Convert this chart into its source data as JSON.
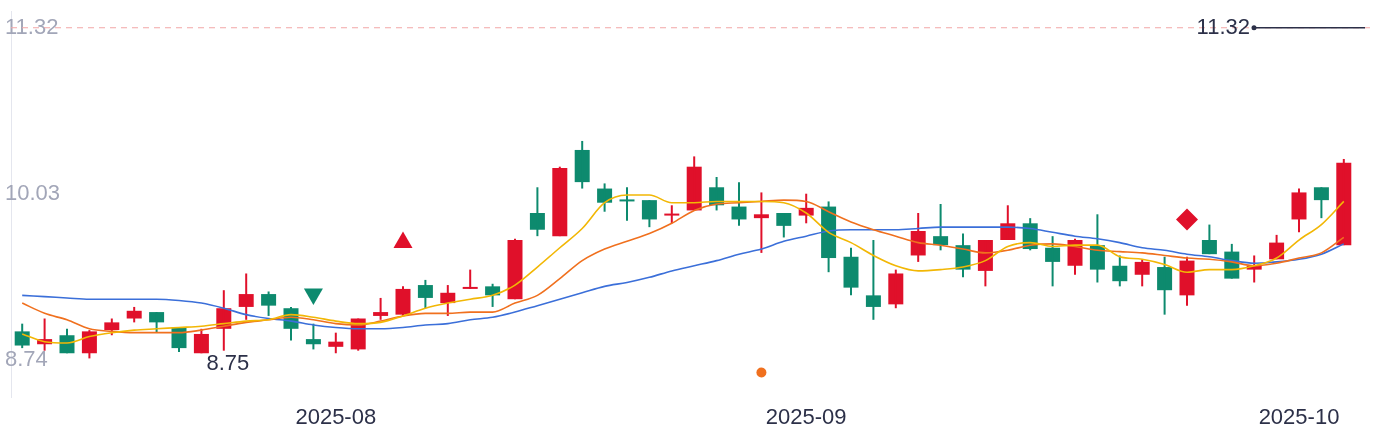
{
  "chart_data": {
    "type": "candlestick",
    "categories": [
      null,
      null,
      null,
      null,
      null,
      null,
      null,
      null,
      null,
      null,
      null,
      null,
      null,
      null,
      "2025-08",
      null,
      null,
      null,
      null,
      null,
      null,
      null,
      null,
      null,
      null,
      null,
      null,
      null,
      null,
      null,
      null,
      null,
      null,
      null,
      null,
      "2025-09",
      null,
      null,
      null,
      null,
      null,
      null,
      null,
      null,
      null,
      null,
      null,
      null,
      null,
      null,
      null,
      null,
      null,
      null,
      null,
      null,
      null,
      "2025-10",
      null,
      null
    ],
    "ohlc": [
      [
        8.96,
        9.02,
        8.83,
        8.85
      ],
      [
        8.86,
        9.06,
        8.81,
        8.9
      ],
      [
        8.93,
        8.98,
        8.79,
        8.79
      ],
      [
        8.79,
        8.97,
        8.75,
        8.96
      ],
      [
        8.97,
        9.06,
        8.93,
        9.03
      ],
      [
        9.06,
        9.15,
        9.03,
        9.12
      ],
      [
        9.11,
        9.11,
        8.95,
        9.03
      ],
      [
        8.99,
        8.99,
        8.8,
        8.83
      ],
      [
        8.79,
        8.98,
        8.79,
        8.94
      ],
      [
        8.98,
        9.28,
        8.81,
        9.14
      ],
      [
        9.15,
        9.41,
        9.05,
        9.25
      ],
      [
        9.25,
        9.27,
        9.08,
        9.16
      ],
      [
        9.14,
        9.15,
        8.89,
        8.98
      ],
      [
        8.9,
        9.02,
        8.82,
        8.86
      ],
      [
        8.84,
        8.95,
        8.79,
        8.88
      ],
      [
        8.82,
        9.06,
        8.81,
        9.06
      ],
      [
        9.08,
        9.22,
        9.05,
        9.11
      ],
      [
        9.09,
        9.31,
        9.08,
        9.29
      ],
      [
        9.32,
        9.36,
        9.14,
        9.22
      ],
      [
        9.18,
        9.32,
        9.08,
        9.26
      ],
      [
        9.29,
        9.44,
        9.29,
        9.3
      ],
      [
        9.31,
        9.33,
        9.15,
        9.24
      ],
      [
        9.21,
        9.68,
        9.21,
        9.67
      ],
      [
        9.88,
        10.08,
        9.7,
        9.75
      ],
      [
        9.7,
        10.24,
        9.7,
        10.23
      ],
      [
        10.37,
        10.44,
        10.07,
        10.12
      ],
      [
        10.07,
        10.11,
        9.89,
        9.96
      ],
      [
        9.98,
        10.08,
        9.82,
        9.97
      ],
      [
        9.98,
        9.98,
        9.77,
        9.83
      ],
      [
        9.86,
        9.94,
        9.8,
        9.87
      ],
      [
        9.9,
        10.32,
        9.9,
        10.24
      ],
      [
        10.08,
        10.16,
        9.9,
        9.94
      ],
      [
        9.93,
        10.12,
        9.78,
        9.83
      ],
      [
        9.84,
        10.04,
        9.57,
        9.87
      ],
      [
        9.88,
        9.88,
        9.69,
        9.78
      ],
      [
        9.86,
        10.03,
        9.8,
        9.92
      ],
      [
        9.93,
        9.97,
        9.42,
        9.53
      ],
      [
        9.54,
        9.61,
        9.24,
        9.3
      ],
      [
        9.24,
        9.67,
        9.05,
        9.15
      ],
      [
        9.17,
        9.44,
        9.14,
        9.41
      ],
      [
        9.55,
        9.88,
        9.5,
        9.74
      ],
      [
        9.7,
        9.95,
        9.59,
        9.63
      ],
      [
        9.63,
        9.72,
        9.38,
        9.44
      ],
      [
        9.43,
        9.67,
        9.31,
        9.67
      ],
      [
        9.67,
        9.94,
        9.67,
        9.8
      ],
      [
        9.8,
        9.84,
        9.59,
        9.6
      ],
      [
        9.61,
        9.7,
        9.31,
        9.5
      ],
      [
        9.47,
        9.68,
        9.4,
        9.67
      ],
      [
        9.63,
        9.87,
        9.34,
        9.44
      ],
      [
        9.47,
        9.55,
        9.31,
        9.35
      ],
      [
        9.4,
        9.52,
        9.31,
        9.5
      ],
      [
        9.46,
        9.54,
        9.09,
        9.28
      ],
      [
        9.24,
        9.54,
        9.16,
        9.51
      ],
      [
        9.67,
        9.79,
        9.56,
        9.56
      ],
      [
        9.58,
        9.64,
        9.37,
        9.37
      ],
      [
        9.44,
        9.55,
        9.34,
        9.47
      ],
      [
        9.52,
        9.71,
        9.52,
        9.65
      ],
      [
        9.83,
        10.07,
        9.73,
        10.04
      ],
      [
        10.08,
        10.08,
        9.84,
        9.98
      ],
      [
        9.63,
        10.3,
        9.63,
        10.27
      ]
    ],
    "colors": [
      "#0d8a6e",
      "#e0102a",
      "#0d8a6e",
      "#e0102a",
      "#e0102a",
      "#e0102a",
      "#0d8a6e",
      "#0d8a6e",
      "#e0102a",
      "#e0102a",
      "#e0102a",
      "#0d8a6e",
      "#0d8a6e",
      "#0d8a6e",
      "#e0102a",
      "#e0102a",
      "#e0102a",
      "#e0102a",
      "#0d8a6e",
      "#e0102a",
      "#e0102a",
      "#0d8a6e",
      "#e0102a",
      "#0d8a6e",
      "#e0102a",
      "#0d8a6e",
      "#0d8a6e",
      "#0d8a6e",
      "#0d8a6e",
      "#e0102a",
      "#e0102a",
      "#0d8a6e",
      "#0d8a6e",
      "#e0102a",
      "#0d8a6e",
      "#e0102a",
      "#0d8a6e",
      "#0d8a6e",
      "#0d8a6e",
      "#e0102a",
      "#e0102a",
      "#0d8a6e",
      "#0d8a6e",
      "#e0102a",
      "#e0102a",
      "#0d8a6e",
      "#0d8a6e",
      "#e0102a",
      "#0d8a6e",
      "#0d8a6e",
      "#e0102a",
      "#0d8a6e",
      "#e0102a",
      "#0d8a6e",
      "#0d8a6e",
      "#e0102a",
      "#e0102a",
      "#e0102a",
      "#0d8a6e",
      "#e0102a"
    ],
    "series": [
      {
        "type": "line",
        "color": "#f2b705",
        "values": [
          8.94,
          8.88,
          8.87,
          8.92,
          8.95,
          8.97,
          8.98,
          8.99,
          9.0,
          9.02,
          9.04,
          9.05,
          9.09,
          9.07,
          9.04,
          9.02,
          9.03,
          9.08,
          9.14,
          9.18,
          9.21,
          9.24,
          9.32,
          9.46,
          9.61,
          9.76,
          9.96,
          10.02,
          10.02,
          9.96,
          9.96,
          9.97,
          9.97,
          9.97,
          9.96,
          9.88,
          9.73,
          9.65,
          9.55,
          9.47,
          9.43,
          9.44,
          9.46,
          9.51,
          9.62,
          9.65,
          9.62,
          9.63,
          9.63,
          9.54,
          9.52,
          9.48,
          9.42,
          9.44,
          9.44,
          9.47,
          9.53,
          9.67,
          9.79,
          9.97
        ]
      },
      {
        "type": "line",
        "color": "#f0701e",
        "values": [
          9.18,
          9.1,
          9.05,
          8.98,
          8.96,
          8.95,
          8.95,
          8.95,
          8.97,
          9.0,
          9.03,
          9.05,
          9.07,
          9.05,
          9.02,
          9.01,
          9.04,
          9.08,
          9.1,
          9.1,
          9.11,
          9.11,
          9.18,
          9.24,
          9.37,
          9.51,
          9.6,
          9.66,
          9.72,
          9.8,
          9.9,
          9.95,
          9.96,
          9.97,
          9.98,
          9.97,
          9.89,
          9.81,
          9.75,
          9.7,
          9.65,
          9.63,
          9.6,
          9.57,
          9.59,
          9.63,
          9.64,
          9.62,
          9.59,
          9.58,
          9.57,
          9.55,
          9.53,
          9.52,
          9.5,
          9.47,
          9.49,
          9.53,
          9.57,
          9.69
        ]
      },
      {
        "type": "line",
        "color": "#3b6fd9",
        "values": [
          9.24,
          9.23,
          9.22,
          9.21,
          9.21,
          9.21,
          9.21,
          9.2,
          9.18,
          9.14,
          9.09,
          9.06,
          9.04,
          9.01,
          8.99,
          8.98,
          8.98,
          8.99,
          9.01,
          9.02,
          9.05,
          9.07,
          9.11,
          9.16,
          9.21,
          9.26,
          9.31,
          9.34,
          9.38,
          9.43,
          9.47,
          9.51,
          9.56,
          9.6,
          9.66,
          9.7,
          9.74,
          9.75,
          9.75,
          9.75,
          9.76,
          9.77,
          9.77,
          9.77,
          9.77,
          9.76,
          9.73,
          9.7,
          9.68,
          9.65,
          9.61,
          9.59,
          9.56,
          9.54,
          9.51,
          9.49,
          9.5,
          9.52,
          9.56,
          9.64
        ]
      },
      {
        "type": "scatter",
        "color": "#0d8a6e",
        "marker": "triangle-down",
        "values": [
          null,
          null,
          null,
          null,
          null,
          null,
          null,
          null,
          null,
          null,
          null,
          null,
          null,
          9.25,
          null,
          null,
          null,
          null,
          null,
          null,
          null,
          null,
          null,
          null,
          null,
          null,
          null,
          null,
          null,
          null,
          null,
          null,
          null,
          null,
          null,
          null,
          null,
          null,
          null,
          null,
          null,
          null,
          null,
          null,
          null,
          null,
          null,
          null,
          null,
          null,
          null,
          null,
          null,
          null,
          null,
          null,
          null,
          null,
          null,
          null
        ]
      },
      {
        "type": "scatter",
        "color": "#e0102a",
        "marker": "triangle",
        "values": [
          null,
          null,
          null,
          null,
          null,
          null,
          null,
          null,
          null,
          null,
          null,
          null,
          null,
          null,
          null,
          null,
          null,
          9.65,
          null,
          null,
          null,
          null,
          null,
          null,
          null,
          null,
          null,
          null,
          null,
          null,
          null,
          null,
          null,
          null,
          null,
          null,
          null,
          null,
          null,
          null,
          null,
          null,
          null,
          null,
          null,
          null,
          null,
          null,
          null,
          null,
          null,
          null,
          null,
          null,
          null,
          null,
          null,
          null,
          null,
          null
        ]
      },
      {
        "type": "scatter",
        "color": "#f0701e",
        "marker": "circle",
        "values": [
          null,
          null,
          null,
          null,
          null,
          null,
          null,
          null,
          null,
          null,
          null,
          null,
          null,
          null,
          null,
          null,
          null,
          null,
          null,
          null,
          null,
          null,
          null,
          null,
          null,
          null,
          null,
          null,
          null,
          null,
          null,
          null,
          null,
          8.64,
          null,
          null,
          null,
          null,
          null,
          null,
          null,
          null,
          null,
          null,
          null,
          null,
          null,
          null,
          null,
          null,
          null,
          null,
          null,
          null,
          null,
          null,
          null,
          null,
          null,
          null
        ]
      },
      {
        "type": "scatter",
        "color": "#e0102a",
        "marker": "diamond",
        "values": [
          null,
          null,
          null,
          null,
          null,
          null,
          null,
          null,
          null,
          null,
          null,
          null,
          null,
          null,
          null,
          null,
          null,
          null,
          null,
          null,
          null,
          null,
          null,
          null,
          null,
          null,
          null,
          null,
          null,
          null,
          null,
          null,
          null,
          null,
          null,
          null,
          null,
          null,
          null,
          null,
          null,
          null,
          null,
          null,
          null,
          null,
          null,
          null,
          null,
          null,
          null,
          null,
          9.83,
          null,
          null,
          null,
          null,
          null,
          null,
          null
        ]
      }
    ],
    "ylim": [
      8.45,
      11.45
    ],
    "yticks": [
      8.74,
      10.03,
      11.32
    ],
    "ref_lines": [
      {
        "axis": "y",
        "value": 11.32,
        "label": "11.32",
        "color": "#f2a7a7",
        "line_style": "dashed"
      }
    ],
    "annotations": [
      "8.75"
    ]
  }
}
